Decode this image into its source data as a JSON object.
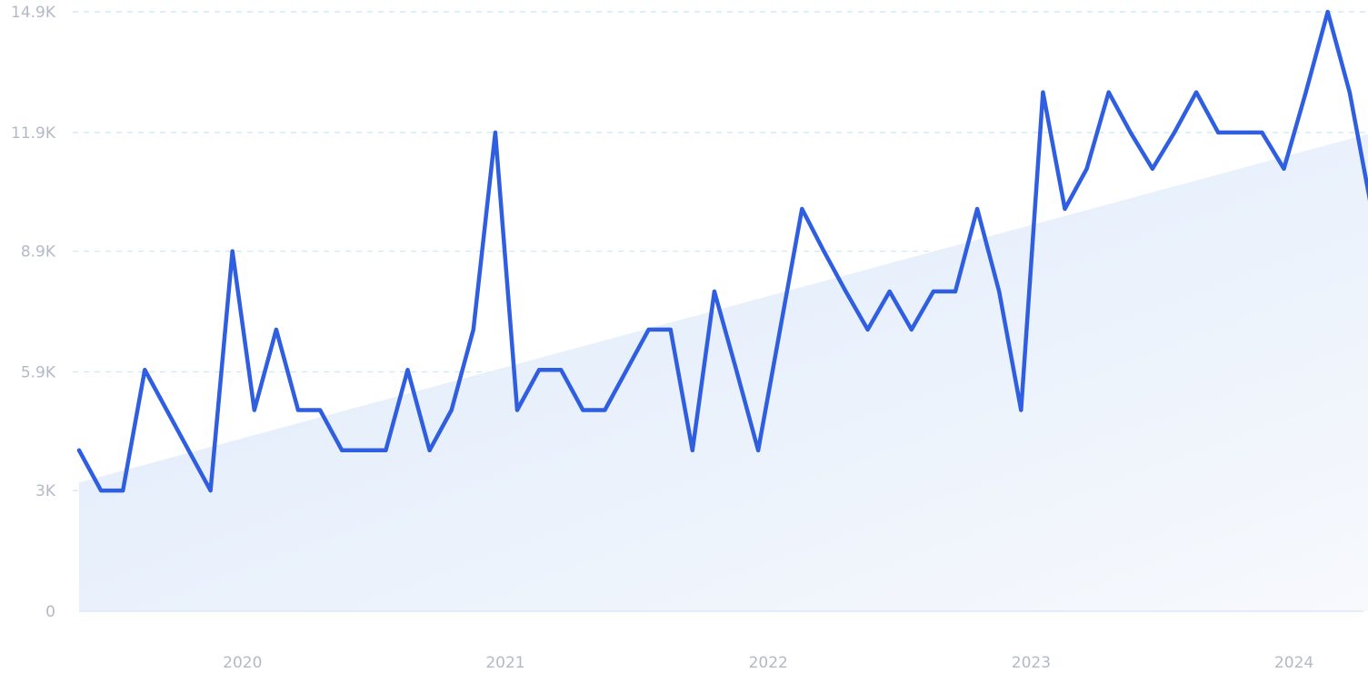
{
  "chart_data": {
    "type": "line",
    "title": "",
    "xlabel": "",
    "ylabel": "",
    "ylim": [
      0,
      14900
    ],
    "grid": true,
    "yticks": [
      {
        "value": 0,
        "label": "0"
      },
      {
        "value": 3000,
        "label": "3K"
      },
      {
        "value": 5950,
        "label": "5.9K"
      },
      {
        "value": 8950,
        "label": "8.9K"
      },
      {
        "value": 11900,
        "label": "11.9K"
      },
      {
        "value": 14900,
        "label": "14.9K"
      }
    ],
    "xticks": [
      {
        "value": "2020-01",
        "label": "2020"
      },
      {
        "value": "2021-01",
        "label": "2021"
      },
      {
        "value": "2022-01",
        "label": "2022"
      },
      {
        "value": "2023-01",
        "label": "2023"
      },
      {
        "value": "2024-01",
        "label": "2024"
      }
    ],
    "x": [
      "2019-05",
      "2019-06",
      "2019-07",
      "2019-08",
      "2019-09",
      "2019-10",
      "2019-11",
      "2019-12",
      "2020-01",
      "2020-02",
      "2020-03",
      "2020-04",
      "2020-05",
      "2020-06",
      "2020-07",
      "2020-08",
      "2020-09",
      "2020-10",
      "2020-11",
      "2020-12",
      "2021-01",
      "2021-02",
      "2021-03",
      "2021-04",
      "2021-05",
      "2021-06",
      "2021-07",
      "2021-08",
      "2021-09",
      "2021-10",
      "2021-11",
      "2021-12",
      "2022-01",
      "2022-02",
      "2022-03",
      "2022-04",
      "2022-05",
      "2022-06",
      "2022-07",
      "2022-08",
      "2022-09",
      "2022-10",
      "2022-11",
      "2022-12",
      "2023-01",
      "2023-02",
      "2023-03",
      "2023-04",
      "2023-05",
      "2023-06",
      "2023-07",
      "2023-08",
      "2023-09",
      "2023-10",
      "2023-11",
      "2023-12",
      "2024-01",
      "2024-02",
      "2024-03",
      "2024-04"
    ],
    "series": [
      {
        "values": [
          4000,
          3000,
          3000,
          6000,
          5000,
          4000,
          3000,
          8950,
          5000,
          7000,
          5000,
          5000,
          4000,
          4000,
          4000,
          6000,
          4000,
          5000,
          7000,
          11900,
          5000,
          6000,
          6000,
          5000,
          5000,
          6000,
          7000,
          7000,
          4000,
          7950,
          6000,
          4000,
          7000,
          10000,
          8950,
          7950,
          7000,
          7950,
          7000,
          7950,
          7950,
          10000,
          7950,
          5000,
          12900,
          10000,
          11000,
          12900,
          11900,
          11000,
          11900,
          12900,
          11900,
          11900,
          11900,
          11000,
          12900,
          14900,
          12900,
          10000
        ]
      }
    ],
    "trend": {
      "start": 3200,
      "end": 11900
    },
    "colors": {
      "line": "#2f5ee0",
      "area_top": "#dce9fa",
      "area_bottom": "#f7f9fd",
      "grid": "#c9e8f2",
      "tick_text": "#b4b9c6"
    }
  }
}
